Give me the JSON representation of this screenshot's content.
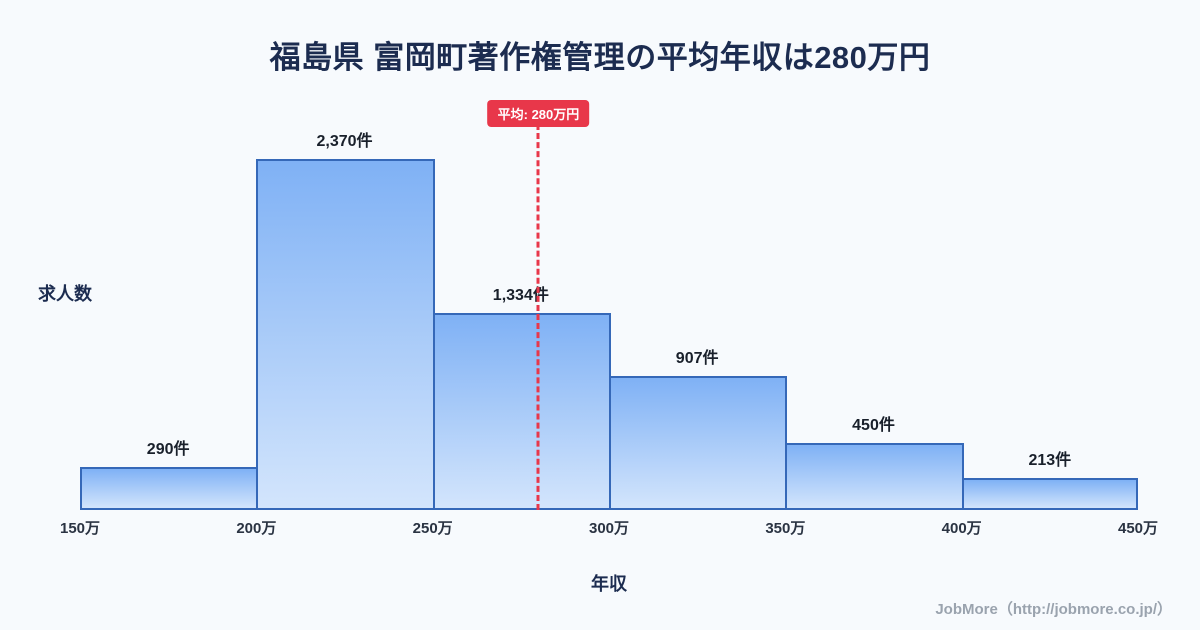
{
  "page": {
    "title": "福島県 富岡町著作権管理の平均年収は280万円",
    "footer": "JobMore（http://jobmore.co.jp/）"
  },
  "chart_data": {
    "type": "bar",
    "title": "福島県 富岡町著作権管理の平均年収は280万円",
    "xlabel": "年収",
    "ylabel": "求人数",
    "categories": [
      "150万-200万",
      "200万-250万",
      "250万-300万",
      "300万-350万",
      "350万-400万",
      "400万-450万"
    ],
    "values": [
      290,
      2370,
      1334,
      907,
      450,
      213
    ],
    "value_labels": [
      "290件",
      "2,370件",
      "1,334件",
      "907件",
      "450件",
      "213件"
    ],
    "bin_edge_labels": [
      "150万",
      "200万",
      "250万",
      "300万",
      "350万",
      "400万",
      "450万"
    ],
    "x_range": [
      150,
      450
    ],
    "ylim": [
      0,
      2500
    ],
    "grid": false,
    "legend": "none",
    "average": {
      "value": 280,
      "label": "平均: 280万円"
    },
    "colors": {
      "background": "#f7fafd",
      "bar_fill_top": "#7fb1f5",
      "bar_fill_bottom": "#d3e5fc",
      "bar_border": "#3568b8",
      "average_accent": "#e8374a",
      "title_text": "#1c2c50",
      "footer_text": "#9aa3ae"
    }
  }
}
